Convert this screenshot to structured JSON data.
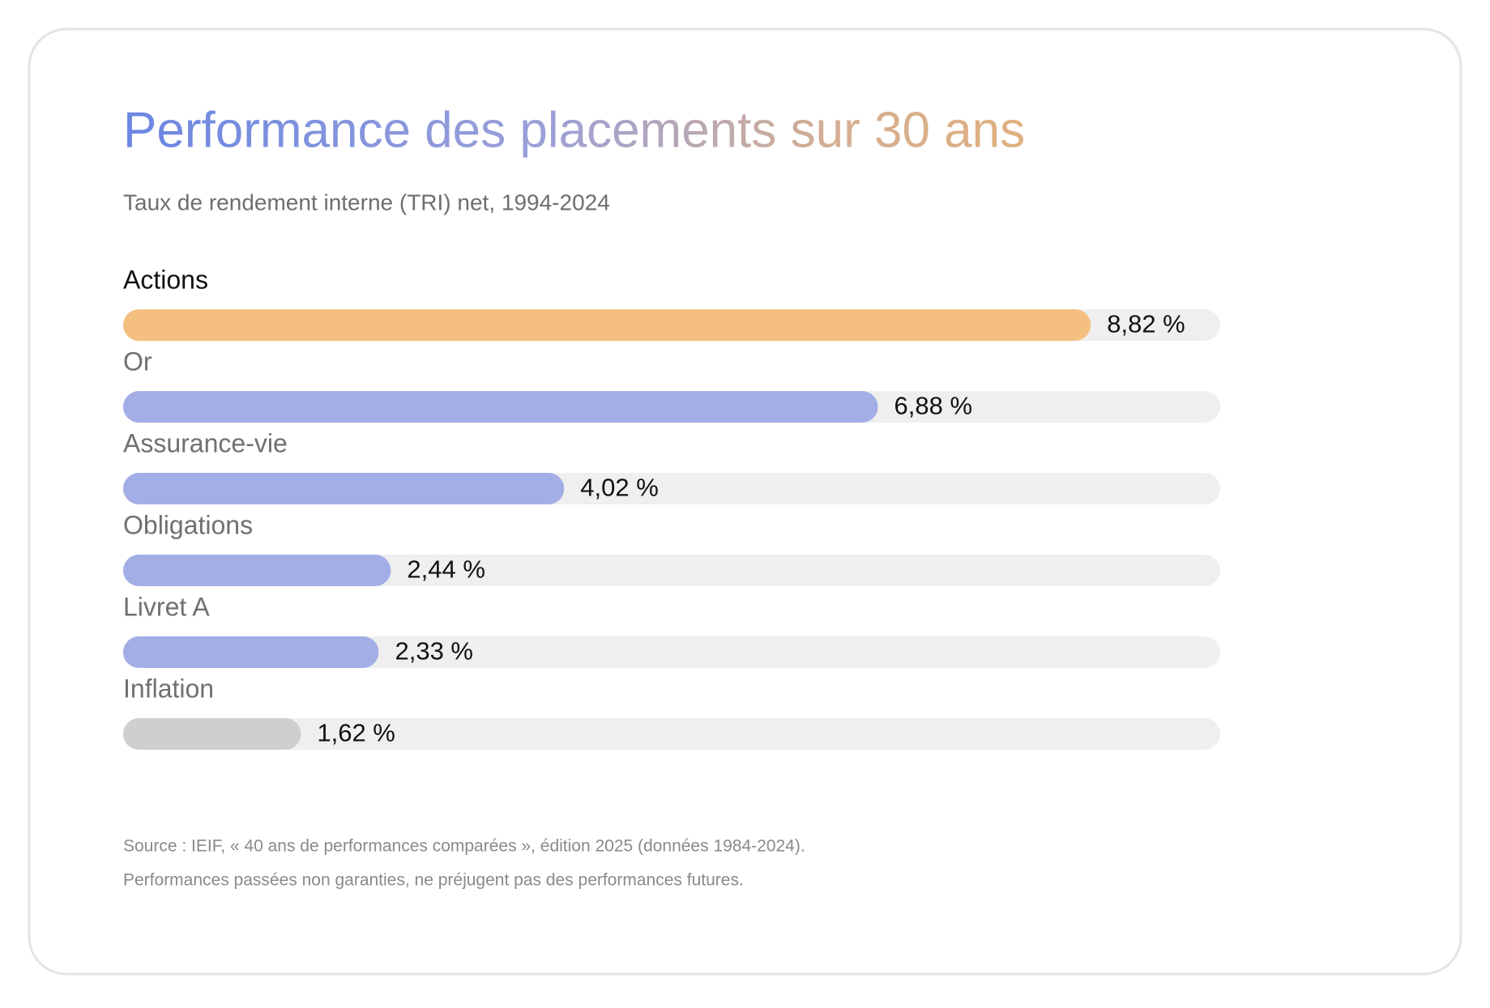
{
  "chart_data": {
    "type": "bar",
    "orientation": "horizontal",
    "title": "Performance des placements sur 30 ans",
    "subtitle": "Taux de rendement interne (TRI) net, 1994-2024",
    "categories": [
      "Actions",
      "Or",
      "Assurance-vie",
      "Obligations",
      "Livret A",
      "Inflation"
    ],
    "values": [
      8.82,
      6.88,
      4.02,
      2.44,
      2.33,
      1.62
    ],
    "value_labels": [
      "8,82 %",
      "6,88 %",
      "4,02 %",
      "2,44 %",
      "2,33 %",
      "1,62 %"
    ],
    "colors": [
      "#f4bf80",
      "#a3aee6",
      "#a3aee6",
      "#a3aee6",
      "#a3aee6",
      "#cfcfcf"
    ],
    "xlim": [
      0,
      10
    ],
    "notes": [
      "Source : IEIF, « 40 ans de performances comparées », édition 2025 (données 1984-2024).",
      "Performances passées non garanties, ne préjugent pas des performances futures."
    ]
  }
}
